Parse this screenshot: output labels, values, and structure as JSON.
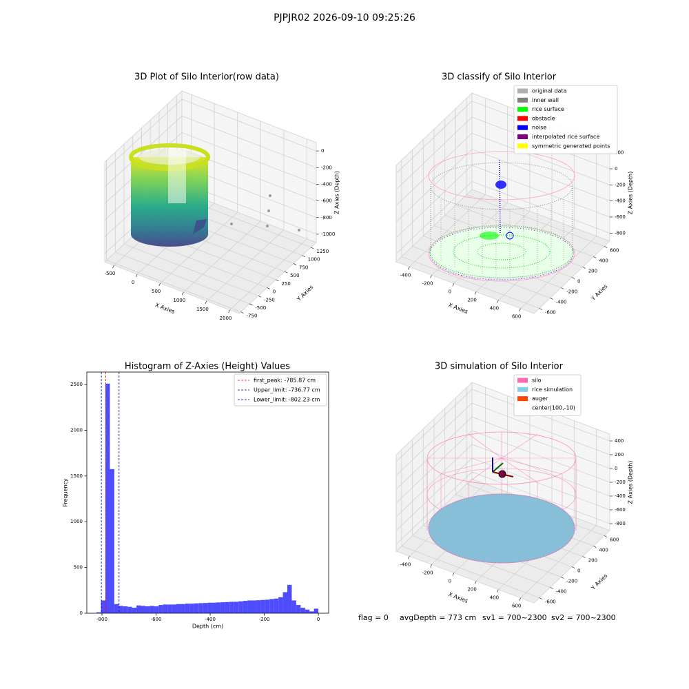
{
  "title": "PJPJR02 2026-09-10 09:25:26",
  "chart_data": [
    {
      "type": "scatter3d",
      "title": "3D Plot of Silo Interior(row data)",
      "x_label": "X Axies",
      "y_label": "Y Axies",
      "z_label": "Z Axies (Depth)",
      "xlim": [
        -700,
        2200
      ],
      "ylim": [
        -800,
        1400
      ],
      "zlim": [
        -1100,
        100
      ],
      "xticks": [
        -500,
        0,
        500,
        1000,
        1500,
        2000
      ],
      "yticks": [
        -750,
        -500,
        -250,
        0,
        250,
        500,
        750,
        1000,
        1250
      ],
      "zticks": [
        -1000,
        -800,
        -600,
        -400,
        -200,
        0
      ]
    },
    {
      "type": "scatter3d",
      "title": "3D classify of Silo Interior",
      "x_label": "X Axies",
      "y_label": "Y Axies",
      "z_label": "Z Axies (Depth)",
      "xlim": [
        -520,
        720
      ],
      "ylim": [
        -700,
        700
      ],
      "zlim": [
        -900,
        300
      ],
      "xticks": [
        -400,
        -200,
        0,
        200,
        400,
        600
      ],
      "yticks": [
        -600,
        -400,
        -200,
        0,
        200,
        400,
        600
      ],
      "zticks": [
        -800,
        -600,
        -400,
        -200,
        0,
        200
      ],
      "legend": [
        {
          "label": "original data",
          "color": "#b0b0b0"
        },
        {
          "label": "inner wall",
          "color": "#808080"
        },
        {
          "label": "rice surface",
          "color": "#00ff00"
        },
        {
          "label": "obstacle",
          "color": "#ff0000"
        },
        {
          "label": "noise",
          "color": "#0000ff"
        },
        {
          "label": "interpolated rice surface",
          "color": "#800080"
        },
        {
          "label": "symmetric generated points",
          "color": "#ffff00"
        }
      ]
    },
    {
      "type": "histogram",
      "title": "Histogram of Z-Axies (Height) Values",
      "x_label": "Depth (cm)",
      "y_label": "Frequency",
      "color": "#4d4dff",
      "bins": [
        -820,
        -803.6,
        -787.2,
        -770.8,
        -754.4,
        -738,
        -721.6,
        -705.2,
        -688.8,
        -672.4,
        -656,
        -639.6,
        -623.2,
        -606.8,
        -590.4,
        -574,
        -557.6,
        -541.2,
        -524.8,
        -508.4,
        -492,
        -475.6,
        -459.2,
        -442.8,
        -426.4,
        -410,
        -393.6,
        -377.2,
        -360.8,
        -344.4,
        -328,
        -311.6,
        -295.2,
        -278.8,
        -262.4,
        -246,
        -229.6,
        -213.2,
        -196.8,
        -180.4,
        -164,
        -147.6,
        -131.2,
        -114.8,
        -98.4,
        -82,
        -65.6,
        -49.2,
        -32.8,
        -16.4,
        0
      ],
      "counts": [
        10,
        140,
        2510,
        1575,
        100,
        80,
        75,
        70,
        60,
        85,
        80,
        75,
        80,
        75,
        90,
        95,
        95,
        95,
        100,
        100,
        105,
        105,
        108,
        110,
        112,
        115,
        115,
        118,
        120,
        122,
        125,
        125,
        130,
        135,
        140,
        140,
        142,
        145,
        148,
        155,
        160,
        175,
        230,
        310,
        140,
        90,
        60,
        40,
        20,
        50
      ],
      "vlines": [
        {
          "value": -785.87,
          "label": "first_peak: -785.87 cm",
          "color": "#ff0000"
        },
        {
          "value": -736.77,
          "label": "Upper_limit: -736.77 cm",
          "color": "#0000aa"
        },
        {
          "value": -802.23,
          "label": "Lower_limit: -802.23 cm",
          "color": "#0000aa"
        }
      ],
      "xlim": [
        -856,
        38
      ],
      "ylim": [
        0,
        2636
      ],
      "xticks": [
        -800,
        -600,
        -400,
        -200,
        0
      ],
      "yticks": [
        0,
        500,
        1000,
        1500,
        2000,
        2500
      ]
    },
    {
      "type": "scatter3d",
      "title": "3D simulation of Silo Interior",
      "x_label": "X Axies",
      "y_label": "Y Axies",
      "z_label": "Z Axies (Depth)",
      "xlim": [
        -520,
        720
      ],
      "ylim": [
        -700,
        700
      ],
      "zlim": [
        -900,
        500
      ],
      "xticks": [
        -400,
        -200,
        0,
        200,
        400,
        600
      ],
      "yticks": [
        -600,
        -400,
        -200,
        0,
        200,
        400,
        600
      ],
      "zticks": [
        -800,
        -600,
        -400,
        -200,
        0,
        200,
        400
      ],
      "legend": [
        {
          "label": "silo",
          "color": "#ff69b4"
        },
        {
          "label": "rice simulation",
          "color": "#87ceeb"
        },
        {
          "label": "auger",
          "color": "#ff4500"
        },
        {
          "label": "center(100,-10)",
          "color": null
        }
      ]
    }
  ],
  "footer": [
    "flag = 0",
    "avgDepth = 773 cm",
    "sv1 = 700~2300",
    "sv2 = 700~2300"
  ]
}
